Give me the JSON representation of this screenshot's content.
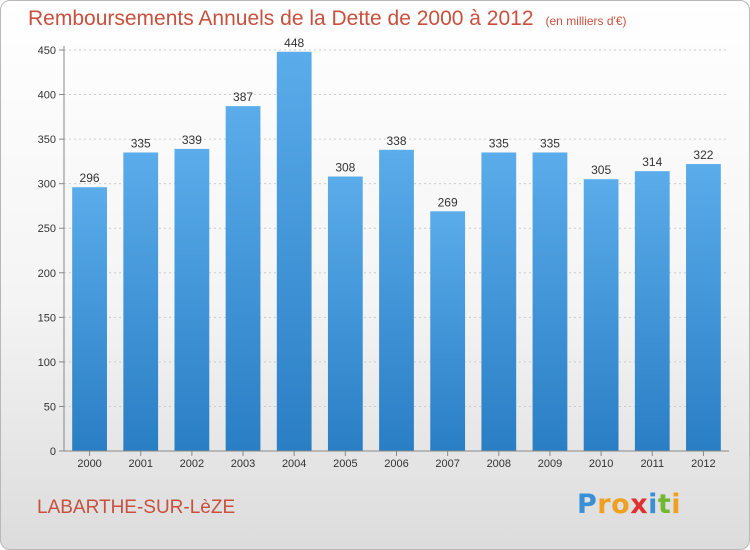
{
  "chart_data": {
    "type": "bar",
    "title": "Remboursements Annuels de la Dette de 2000 à 2012",
    "unit": "(en milliers d'€)",
    "categories": [
      "2000",
      "2001",
      "2002",
      "2003",
      "2004",
      "2005",
      "2006",
      "2007",
      "2008",
      "2009",
      "2010",
      "2011",
      "2012"
    ],
    "values": [
      296,
      335,
      339,
      387,
      448,
      308,
      338,
      269,
      335,
      335,
      305,
      314,
      322
    ],
    "ylim": [
      0,
      450
    ],
    "yticks": [
      0,
      50,
      100,
      150,
      200,
      250,
      300,
      350,
      400,
      450
    ],
    "grid": true,
    "bar_color_top": "#5aacea",
    "bar_color_bottom": "#2a7ec4"
  },
  "town_name": "LABARTHE-SUR-LèZE",
  "brand": {
    "letters": [
      "P",
      "r",
      "o",
      "x",
      "i",
      "t",
      "i"
    ],
    "colors": [
      "#3a8fd6",
      "#f0a020",
      "#f0a020",
      "#e03030",
      "#3a8fd6",
      "#70b830",
      "#f0a020"
    ]
  }
}
